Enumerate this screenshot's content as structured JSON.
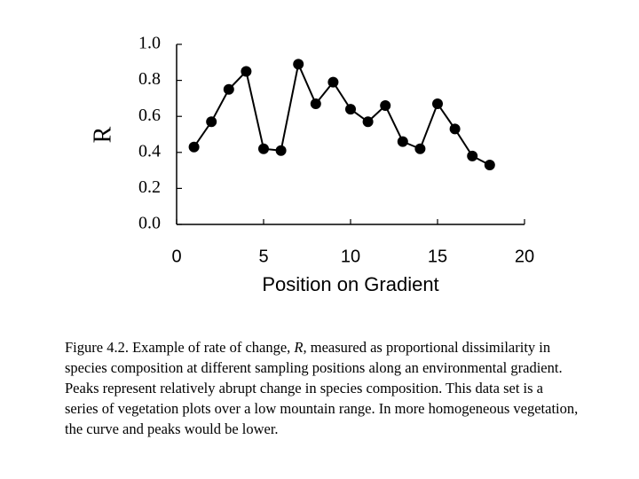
{
  "chart_data": {
    "type": "line",
    "x": [
      1,
      2,
      3,
      4,
      5,
      6,
      7,
      8,
      9,
      10,
      11,
      12,
      13,
      14,
      15,
      16,
      17,
      18
    ],
    "series": [
      {
        "color": "#000000",
        "values": [
          0.43,
          0.57,
          0.75,
          0.85,
          0.42,
          0.41,
          0.89,
          0.67,
          0.79,
          0.64,
          0.57,
          0.66,
          0.46,
          0.42,
          0.67,
          0.53,
          0.38,
          0.33
        ]
      }
    ],
    "xlim": [
      0,
      20
    ],
    "xticks": [
      0,
      5,
      10,
      15,
      20
    ],
    "ylim": [
      0,
      1
    ],
    "yticks": [
      {
        "value": 0,
        "label": "0.0"
      },
      0.2,
      0.4,
      0.6,
      0.8,
      {
        "value": 1,
        "label": "1.0"
      }
    ],
    "xlabel": "Position on Gradient",
    "ylabel": "R"
  },
  "caption": [
    "Figure 4.2.  Example of rate of change, ",
    "R",
    ", measured as proportional dissimilarity in species composition at different sampling positions along an environmental gradient.  Peaks represent relatively abrupt change in species composition.  This data set is a series of vegetation plots over a low mountain range.  In more homogeneous vegetation, the curve and peaks would be lower."
  ]
}
